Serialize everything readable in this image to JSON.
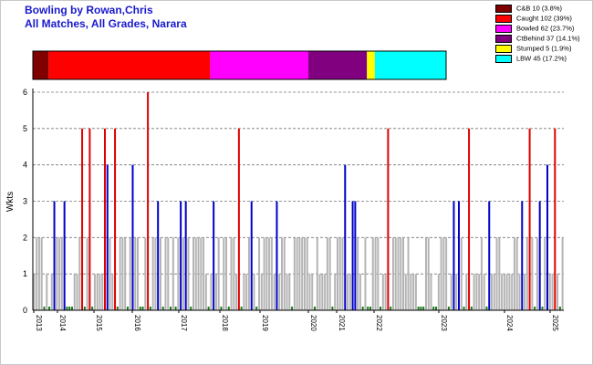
{
  "page": {
    "title_line1": "Bowling by Rowan,Chris",
    "title_line2": "All Matches, All Grades, Narara"
  },
  "legend": [
    {
      "label": "C&B 10 (3.8%)",
      "color": "#800000"
    },
    {
      "label": "Caught 102 (39%)",
      "color": "#ff0000"
    },
    {
      "label": "Bowled 62 (23.7%)",
      "color": "#ff00ff"
    },
    {
      "label": "CtBehind 37 (14.1%)",
      "color": "#800080"
    },
    {
      "label": "Stumped 5 (1.9%)",
      "color": "#ffff00"
    },
    {
      "label": "LBW 45 (17.2%)",
      "color": "#00ffff"
    }
  ],
  "chart_data": [
    {
      "type": "bar",
      "orientation": "horizontal-stacked",
      "segments": [
        {
          "name": "C&B",
          "value": 10,
          "percent": 3.8,
          "color": "#800000"
        },
        {
          "name": "Caught",
          "value": 102,
          "percent": 39,
          "color": "#ff0000"
        },
        {
          "name": "Bowled",
          "value": 62,
          "percent": 23.7,
          "color": "#ff00ff"
        },
        {
          "name": "CtBehind",
          "value": 37,
          "percent": 14.1,
          "color": "#800080"
        },
        {
          "name": "Stumped",
          "value": 5,
          "percent": 1.9,
          "color": "#ffff00"
        },
        {
          "name": "LBW",
          "value": 45,
          "percent": 17.2,
          "color": "#00ffff"
        }
      ]
    },
    {
      "type": "bar",
      "ylabel": "Wkts",
      "ylim": [
        0,
        6
      ],
      "yticks": [
        0,
        1,
        2,
        3,
        4,
        5,
        6
      ],
      "grid": true,
      "x_tick_labels": [
        "2013",
        "2014",
        "2015",
        "2016",
        "2017",
        "2018",
        "2019",
        "2020",
        "2021",
        "2022",
        "2023",
        "2024",
        "2025"
      ],
      "colors": {
        "0": "#1e7a1e",
        "1": "#b4b4b4",
        "2": "#b4b4b4",
        "3": "#0000c8",
        "4": "#0000c8",
        "5": "#e00000",
        "6": "#e00000"
      },
      "values": [
        1,
        2,
        2,
        2,
        0,
        1,
        0,
        1,
        3,
        2,
        2,
        2,
        3,
        0,
        0,
        0,
        1,
        1,
        2,
        5,
        0,
        2,
        5,
        0,
        1,
        1,
        1,
        1,
        5,
        4,
        2,
        1,
        5,
        0,
        2,
        2,
        2,
        0,
        2,
        4,
        2,
        2,
        0,
        0,
        2,
        6,
        0,
        2,
        2,
        3,
        2,
        0,
        2,
        2,
        0,
        2,
        0,
        2,
        3,
        2,
        3,
        2,
        0,
        2,
        2,
        2,
        2,
        2,
        1,
        0,
        1,
        3,
        1,
        2,
        0,
        2,
        2,
        0,
        2,
        2,
        1,
        5,
        0,
        1,
        1,
        2,
        3,
        1,
        0,
        2,
        1,
        2,
        2,
        2,
        2,
        1,
        3,
        1,
        2,
        2,
        1,
        1,
        0,
        2,
        2,
        2,
        2,
        2,
        2,
        1,
        1,
        0,
        2,
        1,
        1,
        1,
        2,
        2,
        0,
        1,
        2,
        2,
        2,
        4,
        1,
        1,
        3,
        3,
        2,
        1,
        0,
        2,
        0,
        0,
        2,
        2,
        2,
        0,
        1,
        1,
        5,
        0,
        2,
        2,
        2,
        2,
        2,
        1,
        2,
        1,
        1,
        1,
        0,
        0,
        0,
        2,
        2,
        1,
        0,
        0,
        1,
        2,
        2,
        2,
        0,
        1,
        3,
        1,
        3,
        2,
        0,
        1,
        5,
        0,
        1,
        1,
        1,
        2,
        1,
        0,
        3,
        1,
        1,
        2,
        2,
        1,
        1,
        1,
        1,
        1,
        2,
        2,
        1,
        3,
        1,
        2,
        5,
        2,
        0,
        2,
        3,
        0,
        2,
        4,
        1,
        1,
        5,
        1,
        0,
        2
      ]
    }
  ]
}
